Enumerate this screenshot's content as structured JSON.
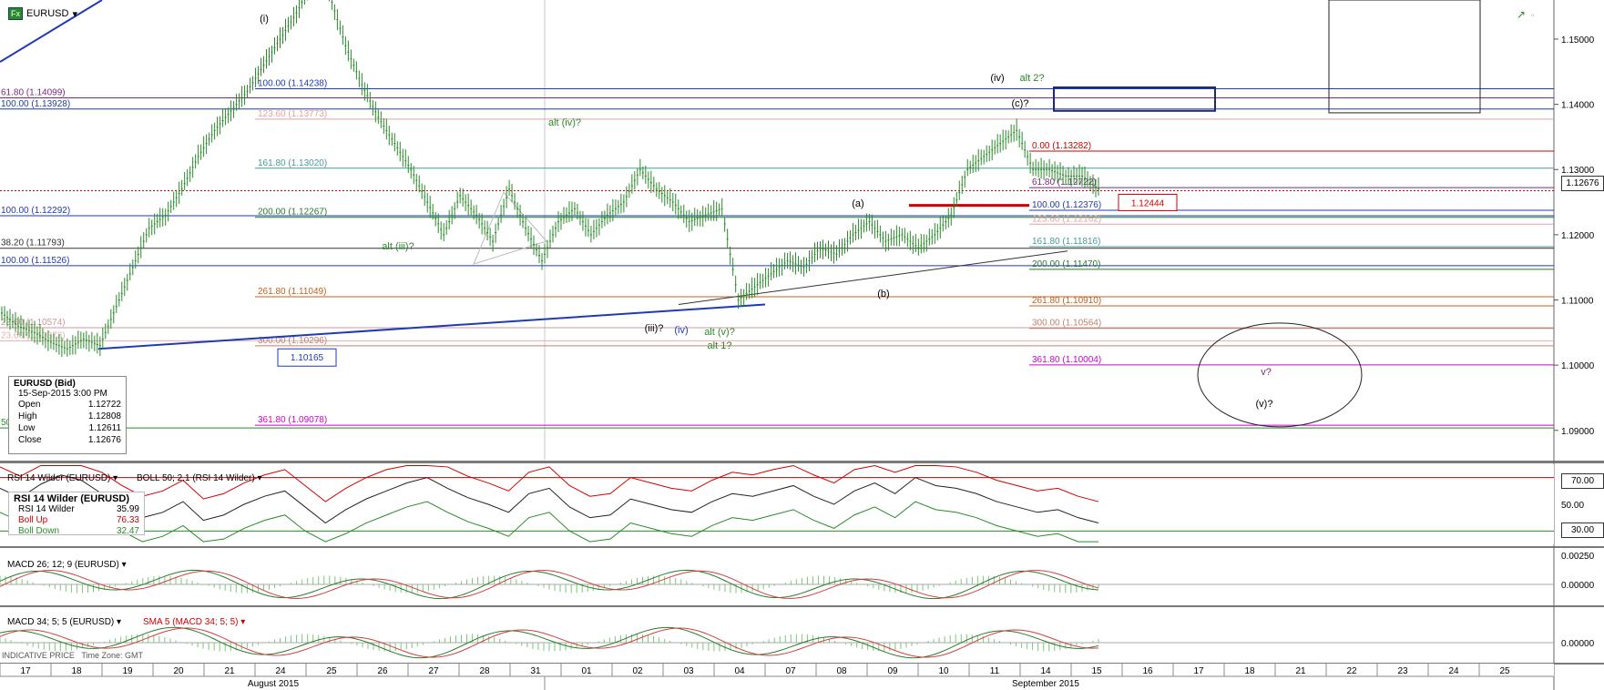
{
  "symbol": {
    "name": "EURUSD",
    "fx_badge": "Fx",
    "menu_icon": "chevron-down-icon"
  },
  "ohlc": {
    "title": "EURUSD (Bid)",
    "datetime": "15-Sep-2015 3:00 PM",
    "rows": [
      {
        "k": "Open",
        "v": "1.12722"
      },
      {
        "k": "High",
        "v": "1.12808"
      },
      {
        "k": "Low",
        "v": "1.12611"
      },
      {
        "k": "Close",
        "v": "1.12676"
      }
    ]
  },
  "rsi_box": {
    "title": "RSI 14 Wilder (EURUSD)",
    "rows": [
      {
        "k": "RSI 14 Wilder",
        "v": "35.99",
        "color": "#000000"
      },
      {
        "k": "Boll Up",
        "v": "76.33",
        "color": "#d00000"
      },
      {
        "k": "Boll Down",
        "v": "32.47",
        "color": "#2a8a2a"
      }
    ]
  },
  "panes": {
    "rsi_label": "RSI 14 Wilder (EURUSD)",
    "boll_label": "BOLL 50; 2.1 (RSI 14 Wilder)",
    "macd1_label": "MACD 26; 12; 9 (EURUSD)",
    "macd2_label": "MACD 34; 5; 5 (EURUSD)",
    "sma_label": "SMA 5 (MACD 34; 5; 5)"
  },
  "footer": {
    "indicative": "INDICATIVE PRICE",
    "timezone": "Time Zone: GMT"
  },
  "right_axis": {
    "price_ticks": [
      "1.15000",
      "1.14000",
      "1.13000",
      "1.12000",
      "1.11000",
      "1.10000",
      "1.09000"
    ],
    "current_price": "1.12676",
    "rsi_ticks": [
      "70.00",
      "50.00",
      "30.00"
    ],
    "macd1_ticks": [
      "0.00250",
      "0.00000"
    ],
    "macd2_ticks": [
      "0.00000"
    ]
  },
  "chart_data": {
    "type": "candlestick",
    "title": "EURUSD",
    "x_days": [
      "17",
      "18",
      "19",
      "20",
      "21",
      "24",
      "25",
      "26",
      "27",
      "28",
      "31",
      "01",
      "02",
      "03",
      "04",
      "07",
      "08",
      "09",
      "10",
      "11",
      "14",
      "15",
      "16",
      "17",
      "18",
      "21",
      "22",
      "23",
      "24",
      "25"
    ],
    "months": [
      "August 2015",
      "September 2015"
    ],
    "ylim": [
      1.0855,
      1.156
    ],
    "last_close": 1.12676,
    "red_level_box": "1.12444",
    "blue_box_label": "1.10165",
    "fib_levels_left": [
      {
        "label": "61.80 (1.14099)",
        "value": 1.14099,
        "color": "#7a2a7a"
      },
      {
        "label": "100.00 (1.13928)",
        "value": 1.13928,
        "color": "#1f3ab5"
      },
      {
        "label": "100.00 (1.12292)",
        "value": 1.12292,
        "color": "#1f3ab5"
      },
      {
        "label": "38.20 (1.11793)",
        "value": 1.11793,
        "color": "#333333"
      },
      {
        "label": "100.00 (1.11526)",
        "value": 1.11526,
        "color": "#1f3ab5"
      },
      {
        "label": "23.60 (1.10574)",
        "value": 1.10574,
        "color": "#c99"
      },
      {
        "label": "23.60 (1.10373)",
        "value": 1.10373,
        "color": "#e7b0b0"
      },
      {
        "label": "50",
        "value": 1.09036,
        "color": "#2a8a2a"
      }
    ],
    "fib_levels_mid": [
      {
        "label": "100.00 (1.14238)",
        "value": 1.14238,
        "color": "#1f3ab5"
      },
      {
        "label": "123.60 (1.13773)",
        "value": 1.13773,
        "color": "#e7a0a0"
      },
      {
        "label": "161.80 (1.13020)",
        "value": 1.1302,
        "color": "#4a9a9a"
      },
      {
        "label": "200.00 (1.12267)",
        "value": 1.12267,
        "color": "#2a7a2a"
      },
      {
        "label": "261.80 (1.11049)",
        "value": 1.11049,
        "color": "#c06020"
      },
      {
        "label": "300.00 (1.10296)",
        "value": 1.10296,
        "color": "#c08070"
      },
      {
        "label": "361.80 (1.09078)",
        "value": 1.09078,
        "color": "#d000d0"
      }
    ],
    "fib_levels_right": [
      {
        "label": "0.00 (1.13282)",
        "value": 1.13282,
        "color": "#d00000"
      },
      {
        "label": "61.80 (1.12722)",
        "value": 1.12722,
        "color": "#7a2a7a"
      },
      {
        "label": "100.00 (1.12376)",
        "value": 1.12376,
        "color": "#1f3ab5"
      },
      {
        "label": "123.60 (1.12162)",
        "value": 1.12162,
        "color": "#e7a0a0"
      },
      {
        "label": "161.80 (1.11816)",
        "value": 1.11816,
        "color": "#4a9a9a"
      },
      {
        "label": "200.00 (1.11470)",
        "value": 1.1147,
        "color": "#2a7a2a"
      },
      {
        "label": "261.80 (1.10910)",
        "value": 1.1091,
        "color": "#c06020"
      },
      {
        "label": "300.00 (1.10564)",
        "value": 1.10564,
        "color": "#c08070"
      },
      {
        "label": "361.80 (1.10004)",
        "value": 1.10004,
        "color": "#d000d0"
      }
    ],
    "wave_labels": [
      {
        "text": "(i)",
        "color": "#000000"
      },
      {
        "text": "(iv)",
        "color": "#000000"
      },
      {
        "text": "alt 2?",
        "color": "#2a8a2a"
      },
      {
        "text": "(c)?",
        "color": "#000000"
      },
      {
        "text": "alt (iv)?",
        "color": "#2a8a2a"
      },
      {
        "text": "alt (iii)?",
        "color": "#2a8a2a"
      },
      {
        "text": "(a)",
        "color": "#000000"
      },
      {
        "text": "(b)",
        "color": "#000000"
      },
      {
        "text": "(iii)?",
        "color": "#000000"
      },
      {
        "text": "(iv)",
        "color": "#1f3ab5"
      },
      {
        "text": "alt (v)?",
        "color": "#2a8a2a"
      },
      {
        "text": "alt 1?",
        "color": "#2a8a2a"
      },
      {
        "text": "v?",
        "color": "#7a2a7a"
      },
      {
        "text": "(v)?",
        "color": "#000000"
      }
    ],
    "close_path": [
      1.108,
      1.106,
      1.105,
      1.1035,
      1.1025,
      1.104,
      1.103,
      1.109,
      1.115,
      1.121,
      1.123,
      1.127,
      1.132,
      1.136,
      1.139,
      1.142,
      1.146,
      1.15,
      1.154,
      1.159,
      1.157,
      1.149,
      1.143,
      1.138,
      1.134,
      1.13,
      1.125,
      1.12,
      1.126,
      1.123,
      1.119,
      1.127,
      1.121,
      1.116,
      1.122,
      1.124,
      1.12,
      1.123,
      1.125,
      1.13,
      1.127,
      1.125,
      1.122,
      1.123,
      1.124,
      1.11,
      1.112,
      1.114,
      1.116,
      1.115,
      1.118,
      1.117,
      1.12,
      1.122,
      1.119,
      1.12,
      1.118,
      1.12,
      1.123,
      1.13,
      1.132,
      1.134,
      1.136,
      1.13,
      1.13,
      1.129,
      1.129,
      1.127
    ],
    "rsi": {
      "ylim": [
        20,
        80
      ],
      "levels": [
        70,
        30
      ],
      "values": [
        62,
        55,
        65,
        72,
        68,
        58,
        48,
        40,
        44,
        52,
        38,
        42,
        50,
        56,
        60,
        48,
        36,
        46,
        54,
        60,
        66,
        70,
        62,
        55,
        50,
        44,
        58,
        62,
        48,
        40,
        42,
        54,
        50,
        46,
        44,
        52,
        58,
        56,
        60,
        64,
        56,
        50,
        60,
        66,
        58,
        70,
        64,
        62,
        58,
        52,
        48,
        44,
        46,
        40,
        36
      ]
    },
    "macd1": {
      "ylim": [
        -0.005,
        0.0035
      ]
    },
    "macd2": {
      "ylim": [
        -0.004,
        0.004
      ]
    }
  }
}
